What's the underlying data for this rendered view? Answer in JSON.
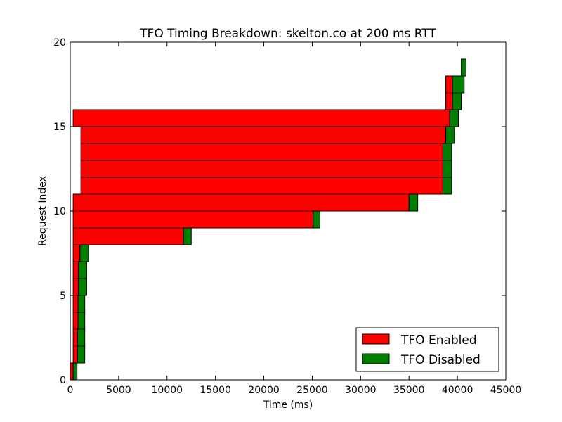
{
  "chart_data": {
    "type": "bar",
    "orientation": "horizontal",
    "title": "TFO Timing Breakdown: skelton.co at 200 ms RTT",
    "xlabel": "Time (ms)",
    "ylabel": "Request Index",
    "xlim": [
      0,
      45000
    ],
    "ylim": [
      0,
      20
    ],
    "xticks": [
      "0",
      "5000",
      "10000",
      "15000",
      "20000",
      "25000",
      "30000",
      "35000",
      "40000",
      "45000"
    ],
    "yticks": [
      "0",
      "5",
      "10",
      "15",
      "20"
    ],
    "legend_position": "bottom-right",
    "grid": false,
    "series": [
      {
        "name": "TFO Enabled",
        "color": "#ff0000",
        "bars": [
          {
            "index": 0,
            "start": 0,
            "end": 300
          },
          {
            "index": 1,
            "start": 300,
            "end": 750
          },
          {
            "index": 2,
            "start": 300,
            "end": 750
          },
          {
            "index": 3,
            "start": 300,
            "end": 800
          },
          {
            "index": 4,
            "start": 300,
            "end": 800
          },
          {
            "index": 5,
            "start": 300,
            "end": 850
          },
          {
            "index": 6,
            "start": 300,
            "end": 850
          },
          {
            "index": 7,
            "start": 300,
            "end": 1000
          },
          {
            "index": 8,
            "start": 300,
            "end": 11700
          },
          {
            "index": 9,
            "start": 300,
            "end": 25100
          },
          {
            "index": 10,
            "start": 300,
            "end": 35000
          },
          {
            "index": 11,
            "start": 1100,
            "end": 38500
          },
          {
            "index": 12,
            "start": 1100,
            "end": 38500
          },
          {
            "index": 13,
            "start": 1100,
            "end": 38500
          },
          {
            "index": 14,
            "start": 1100,
            "end": 38800
          },
          {
            "index": 15,
            "start": 300,
            "end": 39200
          },
          {
            "index": 16,
            "start": 38800,
            "end": 39500
          },
          {
            "index": 17,
            "start": 38800,
            "end": 39500
          }
        ]
      },
      {
        "name": "TFO Disabled",
        "color": "#008000",
        "bars": [
          {
            "index": 0,
            "start": 300,
            "end": 700
          },
          {
            "index": 1,
            "start": 750,
            "end": 1500
          },
          {
            "index": 2,
            "start": 750,
            "end": 1500
          },
          {
            "index": 3,
            "start": 800,
            "end": 1500
          },
          {
            "index": 4,
            "start": 800,
            "end": 1500
          },
          {
            "index": 5,
            "start": 850,
            "end": 1700
          },
          {
            "index": 6,
            "start": 850,
            "end": 1700
          },
          {
            "index": 7,
            "start": 1000,
            "end": 1900
          },
          {
            "index": 8,
            "start": 11700,
            "end": 12500
          },
          {
            "index": 9,
            "start": 25100,
            "end": 25800
          },
          {
            "index": 10,
            "start": 35000,
            "end": 35900
          },
          {
            "index": 11,
            "start": 38500,
            "end": 39400
          },
          {
            "index": 12,
            "start": 38500,
            "end": 39400
          },
          {
            "index": 13,
            "start": 38500,
            "end": 39400
          },
          {
            "index": 14,
            "start": 38800,
            "end": 39700
          },
          {
            "index": 15,
            "start": 39200,
            "end": 40100
          },
          {
            "index": 16,
            "start": 39500,
            "end": 40400
          },
          {
            "index": 17,
            "start": 39500,
            "end": 40700
          },
          {
            "index": 18,
            "start": 40400,
            "end": 40900
          }
        ]
      }
    ]
  }
}
